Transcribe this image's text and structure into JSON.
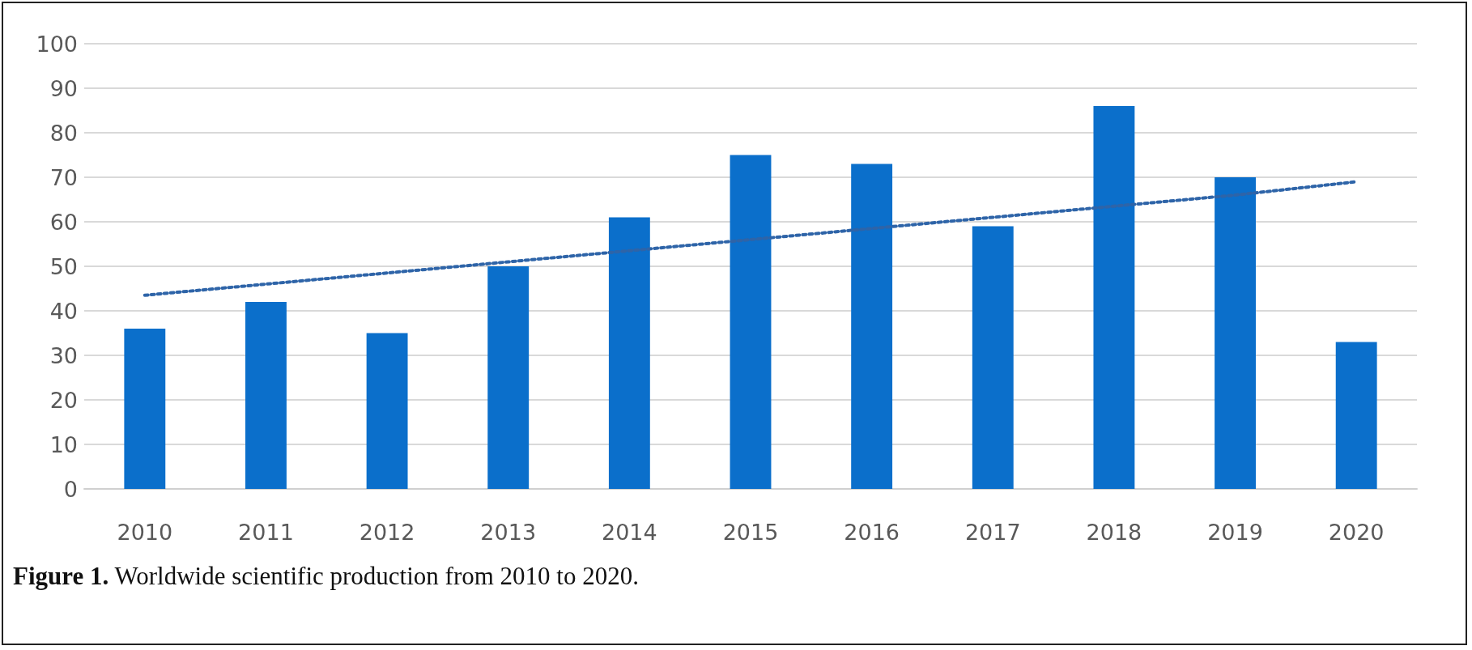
{
  "chart_data": {
    "type": "bar",
    "categories": [
      "2010",
      "2011",
      "2012",
      "2013",
      "2014",
      "2015",
      "2016",
      "2017",
      "2018",
      "2019",
      "2020"
    ],
    "series": [
      {
        "color": "#0b6fcb",
        "values": [
          36,
          42,
          35,
          50,
          61,
          75,
          73,
          59,
          86,
          70,
          33
        ]
      },
      {
        "type": "line",
        "color": "#2e64a8",
        "values": [
          43.5,
          46,
          48.5,
          51,
          53.5,
          56,
          58.5,
          61,
          63.5,
          66,
          69
        ],
        "line_style": "dotted",
        "marker": "none"
      }
    ],
    "ylim": [
      0,
      100
    ],
    "yticks": [
      0,
      10,
      20,
      30,
      40,
      50,
      60,
      70,
      80,
      90,
      100
    ],
    "grid": "y",
    "annotations": [
      "Figure 1. Worldwide scientific production from 2010 to 2020."
    ]
  }
}
